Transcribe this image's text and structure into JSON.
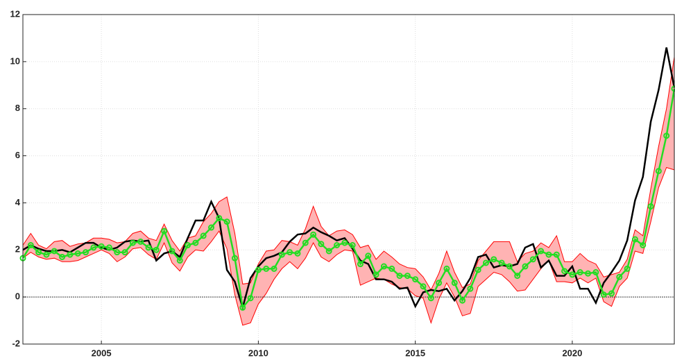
{
  "chart_data": {
    "type": "line",
    "x": [
      2002.5,
      2002.75,
      2003,
      2003.25,
      2003.5,
      2003.75,
      2004,
      2004.25,
      2004.5,
      2004.75,
      2005,
      2005.25,
      2005.5,
      2005.75,
      2006,
      2006.25,
      2006.5,
      2006.75,
      2007,
      2007.25,
      2007.5,
      2007.75,
      2008,
      2008.25,
      2008.5,
      2008.75,
      2009,
      2009.25,
      2009.5,
      2009.75,
      2010,
      2010.25,
      2010.5,
      2010.75,
      2011,
      2011.25,
      2011.5,
      2011.75,
      2012,
      2012.25,
      2012.5,
      2012.75,
      2013,
      2013.25,
      2013.5,
      2013.75,
      2014,
      2014.25,
      2014.5,
      2014.75,
      2015,
      2015.25,
      2015.5,
      2015.75,
      2016,
      2016.25,
      2016.5,
      2016.75,
      2017,
      2017.25,
      2017.5,
      2017.75,
      2018,
      2018.25,
      2018.5,
      2018.75,
      2019,
      2019.25,
      2019.5,
      2019.75,
      2020,
      2020.25,
      2020.5,
      2020.75,
      2021,
      2021.25,
      2021.5,
      2021.75,
      2022,
      2022.25,
      2022.5,
      2022.75,
      2023,
      2023.25
    ],
    "xlim": [
      2002.5,
      2023.25
    ],
    "ylim": [
      -2,
      12
    ],
    "xticks": [
      2005,
      2010,
      2015,
      2020
    ],
    "yticks": [
      -2,
      0,
      2,
      4,
      6,
      8,
      10,
      12
    ],
    "grid": true,
    "reference_line": 0,
    "band": {
      "color": "#ff0000",
      "fill": "#ffb3b3",
      "upper": [
        2.2,
        2.7,
        2.2,
        2.05,
        2.35,
        2.4,
        2.15,
        2.25,
        2.3,
        2.5,
        2.5,
        2.45,
        2.3,
        2.35,
        2.7,
        2.8,
        2.5,
        2.4,
        3.1,
        2.4,
        1.95,
        2.5,
        2.6,
        3.2,
        3.55,
        4.05,
        4.25,
        2.7,
        0.55,
        0.6,
        1.4,
        1.95,
        2.0,
        2.4,
        2.35,
        2.2,
        2.9,
        3.85,
        3.0,
        2.6,
        2.8,
        2.85,
        2.65,
        2.1,
        2.2,
        1.6,
        1.95,
        1.7,
        1.4,
        1.25,
        1.2,
        0.85,
        0.3,
        1.0,
        1.95,
        1.05,
        0.4,
        0.55,
        1.55,
        1.95,
        2.35,
        2.35,
        2.35,
        1.5,
        1.85,
        1.95,
        2.3,
        2.1,
        2.6,
        1.5,
        1.5,
        1.85,
        1.55,
        1.4,
        0.85,
        0.95,
        1.05,
        1.6,
        2.85,
        2.6,
        4.6,
        6.4,
        8.0,
        10.2
      ],
      "lower": [
        1.65,
        1.9,
        1.7,
        1.6,
        1.65,
        1.5,
        1.5,
        1.55,
        1.7,
        1.85,
        2.0,
        1.85,
        1.5,
        1.7,
        2.05,
        2.1,
        1.8,
        1.6,
        2.3,
        1.45,
        1.1,
        1.7,
        2.0,
        1.95,
        2.35,
        2.8,
        2.05,
        0.1,
        -1.2,
        -1.1,
        -0.3,
        0.15,
        0.75,
        1.2,
        1.5,
        1.2,
        1.65,
        2.3,
        1.7,
        1.5,
        1.8,
        2.0,
        1.95,
        0.5,
        0.65,
        0.8,
        0.75,
        0.55,
        0.4,
        0.35,
        0.05,
        -0.05,
        -1.1,
        -0.1,
        0.6,
        0.0,
        -0.8,
        -0.7,
        0.45,
        0.75,
        1.05,
        0.95,
        0.65,
        0.25,
        0.3,
        0.75,
        1.2,
        1.55,
        0.65,
        0.65,
        0.6,
        0.8,
        0.6,
        0.8,
        -0.2,
        -0.4,
        0.45,
        0.8,
        1.95,
        1.85,
        3.2,
        4.65,
        5.5,
        5.4
      ]
    },
    "series": [
      {
        "color": "#000000",
        "values": [
          2.0,
          2.2,
          2.05,
          1.95,
          1.95,
          2.0,
          1.9,
          2.1,
          2.3,
          2.3,
          2.1,
          2.0,
          2.1,
          2.35,
          2.4,
          2.35,
          2.4,
          1.55,
          1.85,
          1.95,
          1.7,
          2.5,
          3.25,
          3.25,
          4.05,
          3.35,
          1.15,
          0.65,
          -0.45,
          0.8,
          1.3,
          1.65,
          1.75,
          1.9,
          2.35,
          2.65,
          2.7,
          2.95,
          2.75,
          2.6,
          2.4,
          2.5,
          2.05,
          1.55,
          1.4,
          0.75,
          0.75,
          0.65,
          0.35,
          0.4,
          -0.4,
          0.2,
          0.3,
          0.25,
          0.35,
          -0.15,
          0.25,
          0.8,
          1.7,
          1.8,
          1.25,
          1.35,
          1.3,
          1.4,
          2.1,
          2.25,
          1.25,
          1.55,
          0.9,
          0.9,
          1.3,
          0.35,
          0.35,
          -0.25,
          0.6,
          1.05,
          1.55,
          2.4,
          4.1,
          5.1,
          7.45,
          8.8,
          10.6,
          8.9
        ]
      },
      {
        "color": "#22dd22",
        "marker": "circle",
        "values": [
          1.65,
          2.2,
          1.9,
          1.8,
          1.95,
          1.7,
          1.8,
          1.85,
          1.9,
          2.1,
          2.15,
          2.1,
          1.9,
          1.9,
          2.3,
          2.35,
          2.1,
          2.0,
          2.8,
          1.95,
          1.55,
          2.2,
          2.3,
          2.6,
          2.95,
          3.35,
          3.2,
          1.65,
          -0.45,
          -0.05,
          1.15,
          1.2,
          1.2,
          1.8,
          1.9,
          1.85,
          2.3,
          2.65,
          2.25,
          1.95,
          2.2,
          2.3,
          2.2,
          1.4,
          1.75,
          0.95,
          1.3,
          1.2,
          0.9,
          0.9,
          0.75,
          0.45,
          -0.05,
          0.6,
          1.2,
          0.6,
          -0.15,
          0.35,
          1.15,
          1.45,
          1.6,
          1.45,
          1.3,
          0.9,
          1.3,
          1.6,
          1.95,
          1.8,
          1.8,
          1.1,
          0.95,
          1.05,
          1.0,
          1.05,
          0.1,
          0.15,
          0.85,
          1.2,
          2.45,
          2.2,
          3.85,
          5.35,
          6.85,
          8.85
        ]
      }
    ]
  }
}
